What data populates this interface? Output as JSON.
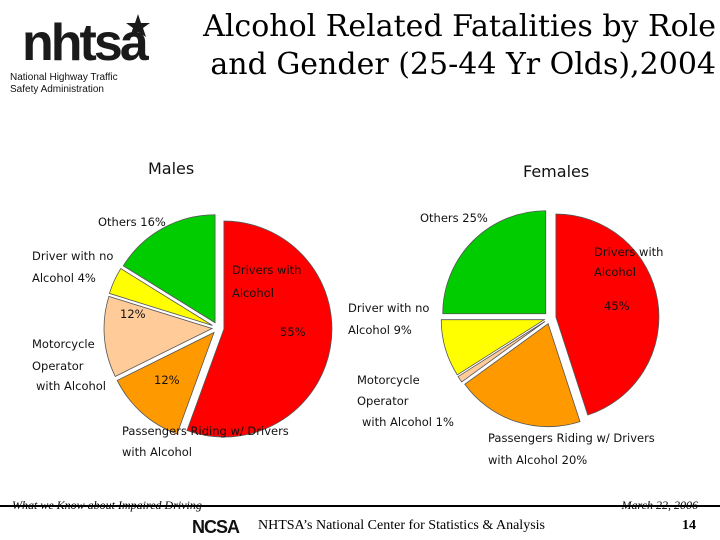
{
  "header": {
    "logo_text": "nhtsa",
    "logo_sub_line1": "National Highway Traffic",
    "logo_sub_line2": "Safety Administration",
    "title_line1": "Alcohol Related Fatalities by Role",
    "title_line2": "and Gender (25-44 Yr Olds),2004"
  },
  "footer": {
    "left": "What we Know about Impaired Driving",
    "right": "March 22, 2006",
    "ncsa_logo_text": "NCSA",
    "center": "NHTSA’s National Center for Statistics & Analysis",
    "page": "14"
  },
  "colors": {
    "drivers_with_alcohol": "#ff0000",
    "passengers": "#ff9900",
    "motorcycle": "#ffcc99",
    "driver_no_alcohol": "#ffff00",
    "others": "#00cc00"
  },
  "chart_data": [
    {
      "type": "pie",
      "title": "Males",
      "categories": [
        "Drivers with Alcohol",
        "Passengers Riding w/ Drivers with Alcohol",
        "Motorcycle Operator with Alcohol",
        "Driver with no Alcohol",
        "Others"
      ],
      "values": [
        55,
        12,
        12,
        4,
        16
      ],
      "value_labels": [
        "55%",
        "12%",
        "12%",
        "4%",
        "16%"
      ],
      "labels": {
        "drivers_l1": "Drivers with",
        "drivers_l2": "Alcohol",
        "drivers_val": "55%",
        "pass_l1": "Passengers Riding w/ Drivers",
        "pass_l2": "with Alcohol",
        "pass_val": "12%",
        "moto_l1": "Motorcycle",
        "moto_l2": "Operator",
        "moto_l3": "with Alcohol",
        "moto_val": "12%",
        "nodrink_l1": "Driver with no",
        "nodrink_l2": "Alcohol 4%",
        "others": "Others 16%"
      }
    },
    {
      "type": "pie",
      "title": "Females",
      "categories": [
        "Drivers with Alcohol",
        "Passengers Riding w/ Drivers with Alcohol",
        "Motorcycle Operator with Alcohol",
        "Driver with no Alcohol",
        "Others"
      ],
      "values": [
        45,
        20,
        1,
        9,
        25
      ],
      "value_labels": [
        "45%",
        "20%",
        "1%",
        "9%",
        "25%"
      ],
      "labels": {
        "drivers_l1": "Drivers with",
        "drivers_l2": "Alcohol",
        "drivers_val": "45%",
        "pass_l1": "Passengers Riding w/ Drivers",
        "pass_l2": "with Alcohol 20%",
        "moto_l1": "Motorcycle",
        "moto_l2": "Operator",
        "moto_l3": "with Alcohol 1%",
        "nodrink_l1": "Driver with no",
        "nodrink_l2": "Alcohol 9%",
        "others": "Others 25%"
      }
    }
  ]
}
